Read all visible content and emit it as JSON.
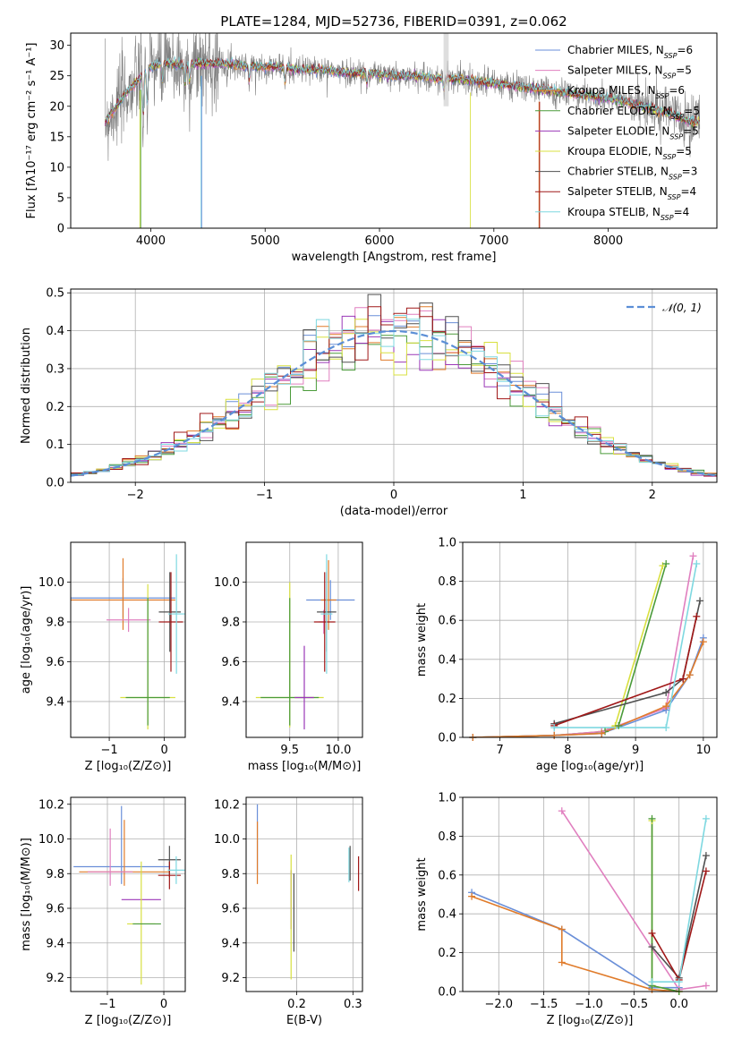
{
  "chart_data": [
    {
      "id": "spectrum",
      "type": "line",
      "title": "PLATE=1284, MJD=52736, FIBERID=0391, z=0.062",
      "xlabel": "wavelength [Angstrom, rest frame]",
      "ylabel": "Flux [fλ10⁻¹⁷ erg cm⁻² s⁻¹ A⁻¹]",
      "xlim": [
        3300,
        8950
      ],
      "ylim": [
        0,
        32
      ],
      "xticks": [
        4000,
        5000,
        6000,
        7000,
        8000
      ],
      "yticks": [
        0,
        5,
        10,
        15,
        20,
        25,
        30
      ],
      "grid": false,
      "legend_position": "top-right",
      "data_color": "#808080",
      "continuum": {
        "x": [
          3600,
          3700,
          3800,
          3900,
          4000,
          4100,
          4200,
          4300,
          4400,
          4500,
          4700,
          4900,
          5100,
          5300,
          5500,
          5700,
          5900,
          6100,
          6300,
          6500,
          6700,
          6900,
          7100,
          7300,
          7500,
          7700,
          7900,
          8100,
          8300,
          8500,
          8700
        ],
        "y": [
          17.5,
          20,
          22.5,
          24.5,
          26.5,
          27,
          27,
          26.5,
          27,
          27,
          27,
          26.5,
          26.5,
          26,
          26,
          25.5,
          25.5,
          25,
          25,
          24.5,
          24.5,
          24,
          23.5,
          23,
          22.5,
          22,
          21.5,
          21,
          20,
          19,
          17.5
        ]
      },
      "series": [
        {
          "name": "Chabrier MILES, N",
          "sub": "SSP",
          "eq": "=6",
          "color": "#6a8fd8"
        },
        {
          "name": "Salpeter MILES, N",
          "sub": "SSP",
          "eq": "=5",
          "color": "#e07fbf"
        },
        {
          "name": "Kroupa MILES, N",
          "sub": "SSP",
          "eq": "=6",
          "color": "#e07b2a"
        },
        {
          "name": "Chabrier ELODIE, N",
          "sub": "SSP",
          "eq": "=5",
          "color": "#4b9b3a"
        },
        {
          "name": "Salpeter ELODIE, N",
          "sub": "SSP",
          "eq": "=5",
          "color": "#9b38b8"
        },
        {
          "name": "Kroupa ELODIE, N",
          "sub": "SSP",
          "eq": "=5",
          "color": "#d8e040"
        },
        {
          "name": "Chabrier STELIB, N",
          "sub": "SSP",
          "eq": "=3",
          "color": "#505050"
        },
        {
          "name": "Salpeter STELIB, N",
          "sub": "SSP",
          "eq": "=4",
          "color": "#a01818"
        },
        {
          "name": "Kroupa STELIB, N",
          "sub": "SSP",
          "eq": "=4",
          "color": "#7ed8e0"
        }
      ]
    },
    {
      "id": "residuals",
      "type": "line",
      "xlabel": "(data-model)/error",
      "ylabel": "Normed distribution",
      "xlim": [
        -2.5,
        2.5
      ],
      "ylim": [
        0,
        0.51
      ],
      "xticks": [
        -2,
        -1,
        0,
        1,
        2
      ],
      "yticks": [
        0.0,
        0.1,
        0.2,
        0.3,
        0.4,
        0.5
      ],
      "grid": true,
      "legend_position": "top-right",
      "gaussian_label": "𝒩(0, 1)",
      "gaussian_color": "#5b8ed6",
      "histogram_bin_width": 0.1
    },
    {
      "id": "age-vs-Z",
      "type": "scatter",
      "xlabel": "Z [log₁₀(Z/Z⊙)]",
      "ylabel": "age  [log₁₀(age/yr)]",
      "xlim": [
        -1.7,
        0.38
      ],
      "ylim": [
        9.22,
        10.2
      ],
      "xticks": [
        -1,
        0
      ],
      "yticks": [
        9.4,
        9.6,
        9.8,
        10.0
      ],
      "grid": true,
      "points": [
        {
          "x": -0.75,
          "xerr": 0.95,
          "y": 9.92,
          "yerr_lo": 0.1,
          "yerr_hi": 0.1,
          "color": "#6a8fd8"
        },
        {
          "x": -0.75,
          "xerr": 0.95,
          "y": 9.91,
          "yerr_lo": 0.15,
          "yerr_hi": 0.21,
          "color": "#e07b2a"
        },
        {
          "x": -0.65,
          "xerr": 0.4,
          "y": 9.81,
          "yerr_lo": 0.06,
          "yerr_hi": 0.06,
          "color": "#e07fbf"
        },
        {
          "x": -0.3,
          "xerr": 0.5,
          "y": 9.42,
          "yerr_lo": 0.16,
          "yerr_hi": 0.57,
          "color": "#d8e040"
        },
        {
          "x": -0.3,
          "xerr": 0.4,
          "y": 9.42,
          "yerr_lo": 0.14,
          "yerr_hi": 0.5,
          "color": "#4b9b3a"
        },
        {
          "x": 0.1,
          "xerr": 0.2,
          "y": 9.85,
          "yerr_lo": 0.2,
          "yerr_hi": 0.2,
          "color": "#505050"
        },
        {
          "x": 0.12,
          "xerr": 0.22,
          "y": 9.8,
          "yerr_lo": 0.25,
          "yerr_hi": 0.25,
          "color": "#a01818"
        },
        {
          "x": 0.22,
          "xerr": 0.15,
          "y": 9.84,
          "yerr_lo": 0.3,
          "yerr_hi": 0.3,
          "color": "#7ed8e0"
        }
      ]
    },
    {
      "id": "age-vs-mass",
      "type": "scatter",
      "xlabel": "mass [log₁₀(M/M⊙)]",
      "ylabel": "",
      "xlim": [
        9.05,
        10.25
      ],
      "ylim": [
        9.22,
        10.2
      ],
      "xticks": [
        9.5,
        10.0
      ],
      "yticks": [
        9.4,
        9.6,
        9.8,
        10.0
      ],
      "grid": true,
      "points": [
        {
          "x": 9.92,
          "xerr": 0.25,
          "y": 9.91,
          "yerr_lo": 0.1,
          "yerr_hi": 0.1,
          "color": "#6a8fd8"
        },
        {
          "x": 9.9,
          "xerr": 0.08,
          "y": 9.91,
          "yerr_lo": 0.15,
          "yerr_hi": 0.2,
          "color": "#e07b2a"
        },
        {
          "x": 9.85,
          "xerr": 0.05,
          "y": 9.8,
          "yerr_lo": 0.06,
          "yerr_hi": 0.06,
          "color": "#e07fbf"
        },
        {
          "x": 9.5,
          "xerr": 0.35,
          "y": 9.42,
          "yerr_lo": 0.15,
          "yerr_hi": 0.58,
          "color": "#d8e040"
        },
        {
          "x": 9.5,
          "xerr": 0.3,
          "y": 9.42,
          "yerr_lo": 0.14,
          "yerr_hi": 0.5,
          "color": "#4b9b3a"
        },
        {
          "x": 9.65,
          "xerr": 0.1,
          "y": 9.42,
          "yerr_lo": 0.16,
          "yerr_hi": 0.26,
          "color": "#9b38b8"
        },
        {
          "x": 9.88,
          "xerr": 0.1,
          "y": 9.85,
          "yerr_lo": 0.2,
          "yerr_hi": 0.2,
          "color": "#505050"
        },
        {
          "x": 9.86,
          "xerr": 0.11,
          "y": 9.8,
          "yerr_lo": 0.25,
          "yerr_hi": 0.25,
          "color": "#a01818"
        },
        {
          "x": 9.88,
          "xerr": 0.06,
          "y": 9.84,
          "yerr_lo": 0.3,
          "yerr_hi": 0.3,
          "color": "#7ed8e0"
        }
      ]
    },
    {
      "id": "mass-weight-vs-age",
      "type": "line",
      "xlabel": "age  [log₁₀(age/yr)]",
      "ylabel": "mass weight",
      "xlim": [
        6.45,
        10.2
      ],
      "ylim": [
        0,
        1.0
      ],
      "xticks": [
        7,
        8,
        9,
        10
      ],
      "yticks": [
        0.0,
        0.2,
        0.4,
        0.6,
        0.8,
        1.0
      ],
      "grid": true,
      "series": [
        {
          "color": "#d8e040",
          "x": [
            6.6,
            7.8,
            8.5,
            8.7,
            9.4
          ],
          "y": [
            0.0,
            0.01,
            0.03,
            0.06,
            0.88
          ]
        },
        {
          "color": "#4b9b3a",
          "x": [
            6.6,
            7.8,
            8.55,
            8.75,
            9.45
          ],
          "y": [
            0.0,
            0.01,
            0.03,
            0.06,
            0.89
          ]
        },
        {
          "color": "#e07fbf",
          "x": [
            6.6,
            7.8,
            8.5,
            9.45,
            9.85
          ],
          "y": [
            0.0,
            0.01,
            0.03,
            0.15,
            0.93
          ]
        },
        {
          "color": "#6a8fd8",
          "x": [
            6.6,
            7.8,
            8.5,
            9.45,
            9.8,
            10.0
          ],
          "y": [
            0.0,
            0.01,
            0.02,
            0.14,
            0.32,
            0.51
          ]
        },
        {
          "color": "#e07b2a",
          "x": [
            6.6,
            7.8,
            8.5,
            9.45,
            9.8,
            10.0
          ],
          "y": [
            0.0,
            0.01,
            0.02,
            0.16,
            0.32,
            0.49
          ]
        },
        {
          "color": "#505050",
          "x": [
            7.8,
            9.45,
            9.7,
            9.95
          ],
          "y": [
            0.07,
            0.23,
            0.3,
            0.7
          ]
        },
        {
          "color": "#a01818",
          "x": [
            7.8,
            9.7,
            9.9
          ],
          "y": [
            0.06,
            0.3,
            0.62
          ]
        },
        {
          "color": "#7ed8e0",
          "x": [
            7.8,
            9.45,
            9.9
          ],
          "y": [
            0.05,
            0.05,
            0.89
          ]
        }
      ]
    },
    {
      "id": "mass-vs-Z",
      "type": "scatter",
      "xlabel": "Z [log₁₀(Z/Z⊙)]",
      "ylabel": "mass [log₁₀(M/M⊙)]",
      "xlim": [
        -1.65,
        0.38
      ],
      "ylim": [
        9.12,
        10.24
      ],
      "xticks": [
        -1,
        0
      ],
      "yticks": [
        9.2,
        9.4,
        9.6,
        9.8,
        10.0,
        10.2
      ],
      "grid": true,
      "points": [
        {
          "x": -0.75,
          "xerr": 0.85,
          "y": 9.84,
          "yerr_lo": 0.1,
          "yerr_hi": 0.35,
          "color": "#6a8fd8"
        },
        {
          "x": -0.7,
          "xerr": 0.8,
          "y": 9.81,
          "yerr_lo": 0.08,
          "yerr_hi": 0.3,
          "color": "#e07b2a"
        },
        {
          "x": -0.95,
          "xerr": 0.4,
          "y": 9.81,
          "yerr_lo": 0.08,
          "yerr_hi": 0.25,
          "color": "#e07fbf"
        },
        {
          "x": -0.4,
          "xerr": 0.35,
          "y": 9.65,
          "yerr_lo": 0.0,
          "yerr_hi": 0.0,
          "color": "#9b38b8"
        },
        {
          "x": -0.4,
          "xerr": 0.25,
          "y": 9.51,
          "yerr_lo": 0.35,
          "yerr_hi": 0.36,
          "color": "#d8e040"
        },
        {
          "x": -0.3,
          "xerr": 0.25,
          "y": 9.51,
          "yerr_lo": 0.0,
          "yerr_hi": 0.0,
          "color": "#4b9b3a"
        },
        {
          "x": 0.1,
          "xerr": 0.2,
          "y": 9.88,
          "yerr_lo": 0.1,
          "yerr_hi": 0.08,
          "color": "#505050"
        },
        {
          "x": 0.1,
          "xerr": 0.2,
          "y": 9.79,
          "yerr_lo": 0.08,
          "yerr_hi": 0.08,
          "color": "#a01818"
        },
        {
          "x": 0.22,
          "xerr": 0.15,
          "y": 9.82,
          "yerr_lo": 0.08,
          "yerr_hi": 0.08,
          "color": "#7ed8e0"
        }
      ]
    },
    {
      "id": "mass-vs-EBV",
      "type": "scatter",
      "xlabel": "E(B-V)",
      "ylabel": "",
      "xlim": [
        0.11,
        0.317
      ],
      "ylim": [
        9.12,
        10.24
      ],
      "xticks": [
        0.2,
        0.3
      ],
      "yticks": [
        9.2,
        9.4,
        9.6,
        9.8,
        10.0,
        10.2
      ],
      "grid": true,
      "points": [
        {
          "x": 0.13,
          "y": 9.92,
          "yerr_lo": 0.12,
          "yerr_hi": 0.28,
          "color": "#6a8fd8"
        },
        {
          "x": 0.13,
          "y": 9.9,
          "yerr_lo": 0.16,
          "yerr_hi": 0.2,
          "color": "#e07b2a"
        },
        {
          "x": 0.19,
          "y": 9.6,
          "yerr_lo": 0.12,
          "yerr_hi": 0.22,
          "color": "#9b38b8"
        },
        {
          "x": 0.19,
          "y": 9.55,
          "yerr_lo": 0.36,
          "yerr_hi": 0.36,
          "color": "#d8e040"
        },
        {
          "x": 0.195,
          "y": 9.55,
          "yerr_lo": 0.2,
          "yerr_hi": 0.25,
          "color": "#505050"
        },
        {
          "x": 0.293,
          "y": 9.85,
          "yerr_lo": 0.1,
          "yerr_hi": 0.1,
          "color": "#7ed8e0"
        },
        {
          "x": 0.295,
          "y": 9.86,
          "yerr_lo": 0.1,
          "yerr_hi": 0.1,
          "color": "#505050"
        },
        {
          "x": 0.31,
          "y": 9.8,
          "yerr_lo": 0.1,
          "yerr_hi": 0.1,
          "color": "#a01818"
        }
      ]
    },
    {
      "id": "mass-weight-vs-Z",
      "type": "line",
      "xlabel": "Z [log₁₀(Z/Z⊙)]",
      "ylabel": "mass weight",
      "xlim": [
        -2.4,
        0.42
      ],
      "ylim": [
        0,
        1.0
      ],
      "xticks": [
        -2.0,
        -1.5,
        -1.0,
        -0.5,
        0.0
      ],
      "yticks": [
        0.0,
        0.2,
        0.4,
        0.6,
        0.8,
        1.0
      ],
      "grid": true,
      "series": [
        {
          "color": "#6a8fd8",
          "x": [
            -2.3,
            -1.3,
            -0.3,
            0.0
          ],
          "y": [
            0.51,
            0.32,
            0.02,
            0.02
          ]
        },
        {
          "color": "#e07b2a",
          "x": [
            -2.3,
            -1.3,
            -1.3,
            -0.3,
            0.0
          ],
          "y": [
            0.49,
            0.32,
            0.15,
            0.01,
            0.0
          ]
        },
        {
          "color": "#e07fbf",
          "x": [
            -1.3,
            0.0,
            0.3
          ],
          "y": [
            0.93,
            0.01,
            0.03
          ]
        },
        {
          "color": "#d8e040",
          "x": [
            -0.3,
            -0.3,
            0.0
          ],
          "y": [
            0.88,
            0.03,
            0.0
          ]
        },
        {
          "color": "#4b9b3a",
          "x": [
            -0.3,
            -0.3,
            0.0
          ],
          "y": [
            0.89,
            0.03,
            0.0
          ]
        },
        {
          "color": "#505050",
          "x": [
            -0.3,
            0.0,
            0.3
          ],
          "y": [
            0.23,
            0.07,
            0.7
          ]
        },
        {
          "color": "#a01818",
          "x": [
            -0.3,
            0.0,
            0.3
          ],
          "y": [
            0.3,
            0.06,
            0.62
          ]
        },
        {
          "color": "#7ed8e0",
          "x": [
            -0.3,
            0.0,
            0.3
          ],
          "y": [
            0.05,
            0.05,
            0.89
          ]
        }
      ]
    }
  ]
}
